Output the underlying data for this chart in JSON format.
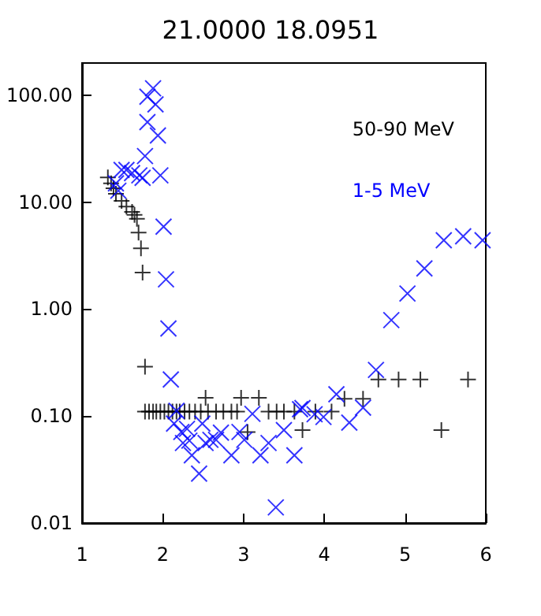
{
  "chart_data": {
    "type": "scatter",
    "title": "21.0000 18.0951",
    "log": "y",
    "grid": false,
    "legend": "top right",
    "xlim": [
      1,
      6
    ],
    "xticks": [
      1,
      2,
      3,
      4,
      5,
      6
    ],
    "ylim": [
      0.01,
      200
    ],
    "yticks": [
      {
        "value": 0.01,
        "label": "0.01"
      },
      {
        "value": 0.1,
        "label": "0.10"
      },
      {
        "value": 1,
        "label": "1.00"
      },
      {
        "value": 10,
        "label": "10.00"
      },
      {
        "value": 100,
        "label": "100.00"
      }
    ],
    "series": [
      {
        "name": "50-90 MeV",
        "color": "#000000",
        "marker": "cross",
        "x": [
          1.32,
          1.36,
          1.39,
          1.42,
          1.49,
          1.55,
          1.62,
          1.65,
          1.68,
          1.7,
          1.73,
          1.75,
          1.78,
          1.78,
          1.83,
          1.88,
          1.92,
          1.97,
          2.02,
          2.07,
          2.12,
          2.17,
          2.21,
          2.27,
          2.33,
          2.4,
          2.47,
          2.56,
          2.66,
          2.75,
          2.85,
          2.92,
          3.31,
          3.41,
          3.5,
          3.63,
          3.89,
          4.09,
          2.53,
          2.97,
          3.19,
          3.05,
          4.25,
          4.48,
          4.67,
          4.92,
          5.19,
          5.78,
          3.73,
          5.45
        ],
        "values": [
          17,
          15,
          13.5,
          12,
          10.3,
          9.1,
          8.1,
          7.6,
          7.0,
          5.2,
          3.7,
          2.2,
          0.29,
          0.11,
          0.11,
          0.11,
          0.11,
          0.11,
          0.11,
          0.11,
          0.11,
          0.11,
          0.11,
          0.11,
          0.11,
          0.11,
          0.11,
          0.11,
          0.11,
          0.11,
          0.11,
          0.11,
          0.11,
          0.11,
          0.11,
          0.11,
          0.11,
          0.11,
          0.148,
          0.148,
          0.148,
          0.071,
          0.145,
          0.145,
          0.22,
          0.22,
          0.22,
          0.22,
          0.074,
          0.074
        ]
      },
      {
        "name": "1-5 MeV",
        "color": "#0000ff",
        "marker": "x",
        "x": [
          1.88,
          1.81,
          1.91,
          1.81,
          1.94,
          1.78,
          1.55,
          1.62,
          1.49,
          1.71,
          1.75,
          1.97,
          1.42,
          1.45,
          2.01,
          2.04,
          2.07,
          2.1,
          2.17,
          2.14,
          2.23,
          2.3,
          2.33,
          2.25,
          2.49,
          2.45,
          2.36,
          2.59,
          2.66,
          2.72,
          2.53,
          2.85,
          2.95,
          3.01,
          3.11,
          3.21,
          3.31,
          3.4,
          3.5,
          3.63,
          3.7,
          3.73,
          3.88,
          3.99,
          4.15,
          4.31,
          4.48,
          4.64,
          4.83,
          5.03,
          5.24,
          5.48,
          5.72,
          5.96
        ],
        "values": [
          116,
          97,
          82,
          56,
          42,
          27,
          20,
          18.7,
          20,
          17.8,
          16.9,
          17.8,
          15,
          12.8,
          5.9,
          1.9,
          0.66,
          0.22,
          0.112,
          0.085,
          0.071,
          0.076,
          0.059,
          0.056,
          0.085,
          0.029,
          0.043,
          0.06,
          0.06,
          0.07,
          0.056,
          0.043,
          0.071,
          0.06,
          0.105,
          0.043,
          0.056,
          0.014,
          0.074,
          0.043,
          0.116,
          0.119,
          0.104,
          0.098,
          0.16,
          0.087,
          0.12,
          0.27,
          0.79,
          1.4,
          2.4,
          4.4,
          4.8,
          4.4
        ]
      }
    ]
  }
}
